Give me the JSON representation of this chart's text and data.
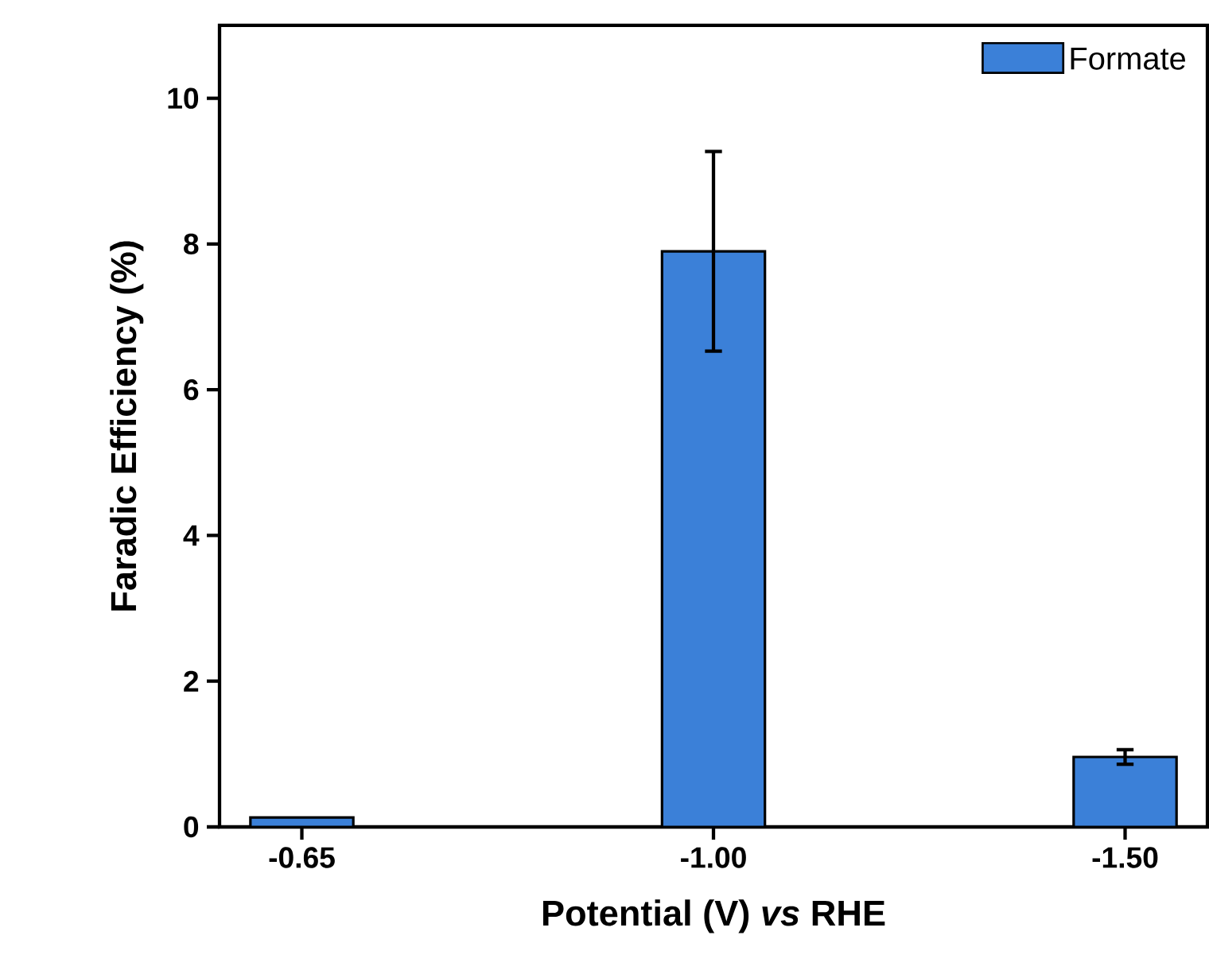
{
  "chart_data": {
    "type": "bar",
    "xlabel": "Potential (V) *vs* RHE",
    "ylabel": "Faradic Efficiency (%)",
    "categories": [
      "-0.65",
      "-1.00",
      "-1.50"
    ],
    "series": [
      {
        "name": "Formate",
        "color": "#3b80d8",
        "values": [
          0.13,
          7.9,
          0.96
        ],
        "errors": [
          null,
          1.37,
          0.1
        ]
      }
    ],
    "ylim": [
      0,
      11
    ],
    "yticks": [
      0,
      2,
      4,
      6,
      8,
      10
    ],
    "legend": "top right",
    "grid": false
  }
}
